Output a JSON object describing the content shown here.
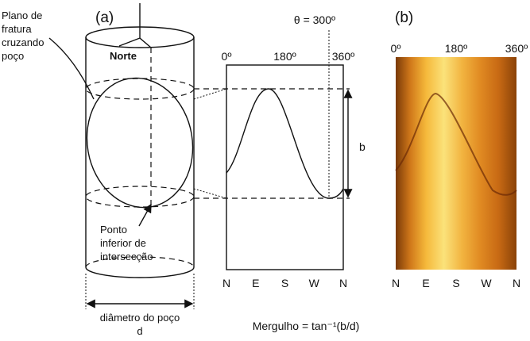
{
  "labels": {
    "panel_a": "(a)",
    "panel_b": "(b)",
    "fracture_plane": [
      "Plano de",
      "fratura",
      "cruzando",
      "poço"
    ],
    "north": "Norte",
    "lowest_point": [
      "Ponto",
      "inferior de",
      "intersecção"
    ],
    "diameter": "diâmetro do poço",
    "d": "d",
    "b": "b",
    "theta": "θ = 300º",
    "dip_formula": "Mergulho = tan⁻¹(b/d)"
  },
  "unrolled_axis": {
    "top": [
      "0º",
      "180º",
      "360º"
    ],
    "bottom": [
      "N",
      "E",
      "S",
      "W",
      "N"
    ]
  },
  "image_axis": {
    "top": [
      "0º",
      "180º",
      "360º"
    ],
    "bottom": [
      "N",
      "E",
      "S",
      "W",
      "N"
    ]
  }
}
